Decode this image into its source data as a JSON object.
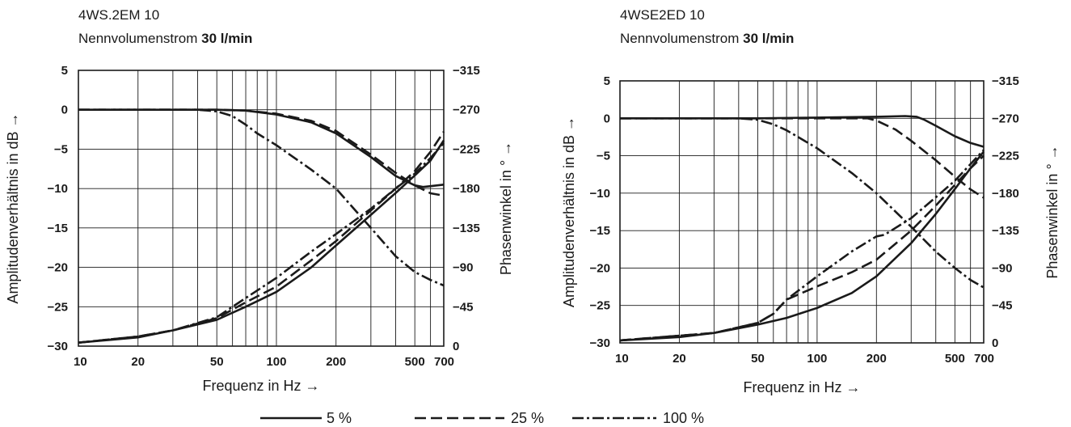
{
  "chart_data": [
    {
      "type": "line",
      "title": "4WS.2EM 10",
      "subtitle_prefix": "Nennvolumenstrom",
      "subtitle_value": "30 l/min",
      "xlabel": "Frequenz in Hz →",
      "ylabel": "Amplitudenverhältnis in dB →",
      "y2label": "Phasenwinkel in ° →",
      "x_scale": "log",
      "xlim": [
        10,
        700
      ],
      "ylim": [
        -30,
        5
      ],
      "y2lim": [
        0,
        -315
      ],
      "grid": true,
      "x_ticks": [
        10,
        20,
        50,
        100,
        200,
        500,
        700
      ],
      "x_gridlines": [
        10,
        20,
        30,
        40,
        50,
        60,
        70,
        80,
        90,
        100,
        200,
        300,
        400,
        500,
        600,
        700
      ],
      "y_ticks": [
        5,
        0,
        -5,
        -10,
        -15,
        -20,
        -25,
        -30
      ],
      "y_tick_labels": [
        "5",
        "0",
        "−5",
        "−10",
        "−15",
        "−20",
        "−25",
        "−30"
      ],
      "y2_ticks": [
        -315,
        -270,
        -225,
        -180,
        -135,
        -90,
        -45,
        0
      ],
      "y2_tick_labels": [
        "−315",
        "−270",
        "−225",
        "−180",
        "−135",
        "−90",
        "−45",
        "0"
      ],
      "series": [
        {
          "name": "5 %",
          "kind": "amplitude",
          "axis": "left",
          "style": "solid",
          "x": [
            10,
            30,
            50,
            70,
            100,
            150,
            200,
            300,
            400,
            500,
            550,
            600,
            700
          ],
          "y": [
            0,
            0,
            0,
            -0.1,
            -0.6,
            -1.6,
            -3,
            -6,
            -8.4,
            -9.6,
            -9.8,
            -9.7,
            -9.5
          ]
        },
        {
          "name": "25 %",
          "kind": "amplitude",
          "axis": "left",
          "style": "dashed",
          "x": [
            10,
            30,
            50,
            70,
            100,
            150,
            200,
            300,
            400,
            500,
            600,
            700
          ],
          "y": [
            0,
            0,
            0,
            -0.1,
            -0.5,
            -1.4,
            -2.7,
            -5.7,
            -8,
            -9.6,
            -10.6,
            -10.9
          ]
        },
        {
          "name": "100 %",
          "kind": "amplitude",
          "axis": "left",
          "style": "dashdot",
          "x": [
            10,
            40,
            50,
            60,
            70,
            80,
            100,
            150,
            200,
            300,
            400,
            500,
            600,
            700
          ],
          "y": [
            0,
            0,
            -0.2,
            -0.8,
            -1.9,
            -3,
            -4.5,
            -7.6,
            -10,
            -15,
            -18.6,
            -20.6,
            -21.6,
            -22.3
          ]
        },
        {
          "name": "5 %",
          "kind": "phase",
          "axis": "right",
          "style": "solid",
          "x": [
            10,
            20,
            30,
            50,
            70,
            100,
            150,
            200,
            300,
            400,
            500,
            600,
            700
          ],
          "y": [
            -4,
            -10,
            -18,
            -30,
            -45,
            -62,
            -90,
            -115,
            -150,
            -175,
            -195,
            -212,
            -235
          ]
        },
        {
          "name": "25 %",
          "kind": "phase",
          "axis": "right",
          "style": "dashed",
          "x": [
            10,
            20,
            30,
            50,
            70,
            100,
            150,
            200,
            300,
            400,
            500,
            600,
            700
          ],
          "y": [
            -4,
            -11,
            -18,
            -32,
            -50,
            -68,
            -98,
            -120,
            -155,
            -180,
            -200,
            -222,
            -245
          ]
        },
        {
          "name": "100 %",
          "kind": "phase",
          "axis": "right",
          "style": "dashdot",
          "x": [
            10,
            20,
            30,
            50,
            70,
            100,
            150,
            200,
            300,
            400,
            500,
            600,
            700
          ],
          "y": [
            -4,
            -11,
            -18,
            -33,
            -55,
            -78,
            -108,
            -128,
            -157,
            -180,
            -197,
            -215,
            -232
          ]
        }
      ]
    },
    {
      "type": "line",
      "title": "4WSE2ED 10",
      "subtitle_prefix": "Nennvolumenstrom",
      "subtitle_value": "30 l/min",
      "xlabel": "Frequenz in Hz →",
      "ylabel": "Amplitudenverhältnis in dB →",
      "y2label": "Phasenwinkel in ° →",
      "x_scale": "log",
      "xlim": [
        10,
        700
      ],
      "ylim": [
        -30,
        5
      ],
      "y2lim": [
        0,
        -315
      ],
      "grid": true,
      "x_ticks": [
        10,
        20,
        50,
        100,
        200,
        500,
        700
      ],
      "x_gridlines": [
        10,
        20,
        30,
        40,
        50,
        60,
        70,
        80,
        90,
        100,
        200,
        300,
        400,
        500,
        600,
        700
      ],
      "y_ticks": [
        5,
        0,
        -5,
        -10,
        -15,
        -20,
        -25,
        -30
      ],
      "y_tick_labels": [
        "5",
        "0",
        "−5",
        "−10",
        "−15",
        "−20",
        "−25",
        "−30"
      ],
      "y2_ticks": [
        -315,
        -270,
        -225,
        -180,
        -135,
        -90,
        -45,
        0
      ],
      "y2_tick_labels": [
        "−315",
        "−270",
        "−225",
        "−180",
        "−135",
        "−90",
        "−45",
        "0"
      ],
      "series": [
        {
          "name": "5 %",
          "kind": "amplitude",
          "axis": "left",
          "style": "solid",
          "x": [
            10,
            50,
            100,
            200,
            280,
            320,
            350,
            400,
            500,
            600,
            700
          ],
          "y": [
            0,
            0,
            0.1,
            0.2,
            0.3,
            0.2,
            -0.2,
            -1,
            -2.4,
            -3.3,
            -3.8
          ]
        },
        {
          "name": "25 %",
          "kind": "amplitude",
          "axis": "left",
          "style": "dashed",
          "x": [
            10,
            100,
            180,
            200,
            250,
            300,
            400,
            500,
            600,
            700
          ],
          "y": [
            0,
            0,
            0,
            -0.3,
            -1.5,
            -3,
            -5.6,
            -7.8,
            -9.5,
            -10.6
          ]
        },
        {
          "name": "100 %",
          "kind": "amplitude",
          "axis": "left",
          "style": "dashdot",
          "x": [
            10,
            40,
            50,
            60,
            70,
            100,
            150,
            200,
            300,
            400,
            500,
            600,
            700
          ],
          "y": [
            0,
            0,
            -0.2,
            -0.8,
            -1.6,
            -4,
            -7.3,
            -10,
            -14.5,
            -17.8,
            -20,
            -21.6,
            -22.6
          ]
        },
        {
          "name": "5 %",
          "kind": "phase",
          "axis": "right",
          "style": "solid",
          "x": [
            10,
            20,
            30,
            50,
            70,
            100,
            150,
            200,
            300,
            400,
            500,
            600,
            700
          ],
          "y": [
            -3,
            -7,
            -12,
            -22,
            -30,
            -42,
            -60,
            -80,
            -120,
            -155,
            -185,
            -210,
            -230
          ]
        },
        {
          "name": "25 %",
          "kind": "phase",
          "axis": "right",
          "style": "dashed",
          "x": [
            10,
            30,
            50,
            60,
            70,
            100,
            150,
            200,
            300,
            400,
            500,
            600,
            700
          ],
          "y": [
            -3,
            -12,
            -24,
            -35,
            -52,
            -68,
            -85,
            -100,
            -135,
            -165,
            -190,
            -210,
            -225
          ]
        },
        {
          "name": "100 %",
          "kind": "phase",
          "axis": "right",
          "style": "dashdot",
          "x": [
            10,
            30,
            50,
            60,
            70,
            100,
            150,
            200,
            220,
            300,
            400,
            500,
            600,
            700
          ],
          "y": [
            -3,
            -12,
            -24,
            -35,
            -52,
            -80,
            -110,
            -128,
            -130,
            -150,
            -175,
            -195,
            -215,
            -232
          ]
        }
      ]
    }
  ],
  "legend": [
    {
      "label": "5 %",
      "style": "solid"
    },
    {
      "label": "25 %",
      "style": "dashed"
    },
    {
      "label": "100 %",
      "style": "dashdot"
    }
  ],
  "colors": {
    "ink": "#1a1a1a",
    "grid": "#1a1a1a",
    "background": "#ffffff"
  }
}
